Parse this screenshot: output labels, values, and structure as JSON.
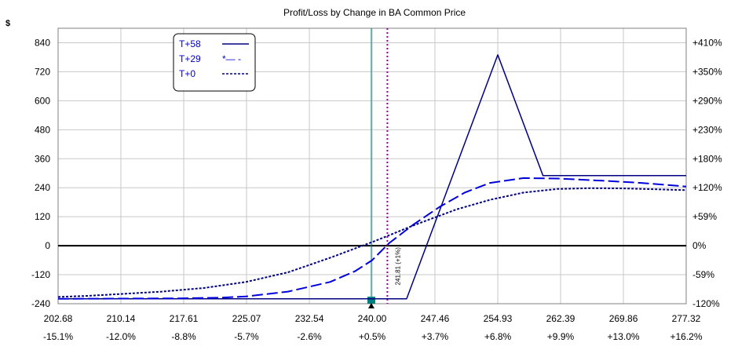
{
  "chart_data": {
    "type": "line",
    "title": "Profit/Loss by Change in BA Common Price",
    "y_unit": "$",
    "xlim": [
      202.68,
      277.32
    ],
    "ylim": [
      -240,
      900
    ],
    "x_ticks": [
      202.68,
      210.14,
      217.61,
      225.07,
      232.54,
      240.0,
      247.46,
      254.93,
      262.39,
      269.86,
      277.32
    ],
    "x_tick_labels": [
      "202.68",
      "210.14",
      "217.61",
      "225.07",
      "232.54",
      "240.00",
      "247.46",
      "254.93",
      "262.39",
      "269.86",
      "277.32"
    ],
    "x_pct_labels": [
      "-15.1%",
      "-12.0%",
      "-8.8%",
      "-5.7%",
      "-2.6%",
      "+0.5%",
      "+3.7%",
      "+6.8%",
      "+9.9%",
      "+13.0%",
      "+16.2%"
    ],
    "y_ticks": [
      -240,
      -120,
      0,
      120,
      240,
      360,
      480,
      600,
      720,
      840
    ],
    "y_tick_labels": [
      "-240",
      "-120",
      "0",
      "120",
      "240",
      "360",
      "480",
      "600",
      "720",
      "840"
    ],
    "y_right_labels": [
      "-120%",
      "-59%",
      "0%",
      "+59%",
      "+120%",
      "+180%",
      "+230%",
      "+290%",
      "+350%",
      "+410%"
    ],
    "grid": true,
    "legend_position": "top-left",
    "current_price": 239.9,
    "current_price_marker": "triangle-up",
    "breakeven_line": {
      "x": 241.81,
      "label": "241.81 (+1%)",
      "color": "#990099"
    },
    "current_line_color": "#008080",
    "series": [
      {
        "name": "T+58",
        "style": "solid",
        "color": "#000080",
        "x": [
          202.68,
          243.0,
          244.1,
          254.93,
          260.3,
          277.32
        ],
        "y": [
          -220,
          -220,
          -220,
          790,
          290,
          290
        ]
      },
      {
        "name": "T+29",
        "legend_sample": "*— -",
        "style": "dashed",
        "color": "#0000dd",
        "x": [
          202.68,
          210.0,
          217.0,
          222.0,
          225.0,
          230.0,
          235.0,
          238.0,
          240.0,
          242.0,
          245.0,
          248.0,
          251.0,
          254.0,
          258.0,
          262.0,
          268.0,
          272.0,
          277.32
        ],
        "y": [
          -220,
          -219,
          -218,
          -215,
          -210,
          -190,
          -150,
          -105,
          -60,
          10,
          90,
          160,
          220,
          260,
          280,
          278,
          268,
          260,
          245
        ]
      },
      {
        "name": "T+0",
        "style": "dotted",
        "color": "#000080",
        "x": [
          202.68,
          206.0,
          210.0,
          215.0,
          220.0,
          225.0,
          230.0,
          235.0,
          240.0,
          245.0,
          250.0,
          254.0,
          258.0,
          262.0,
          266.0,
          270.0,
          277.32
        ],
        "y": [
          -212,
          -208,
          -200,
          -190,
          -175,
          -150,
          -110,
          -50,
          15,
          85,
          150,
          190,
          220,
          235,
          238,
          237,
          230
        ]
      }
    ]
  },
  "page": {
    "title": "Profit/Loss by Change in BA Common Price",
    "y_unit": "$"
  }
}
